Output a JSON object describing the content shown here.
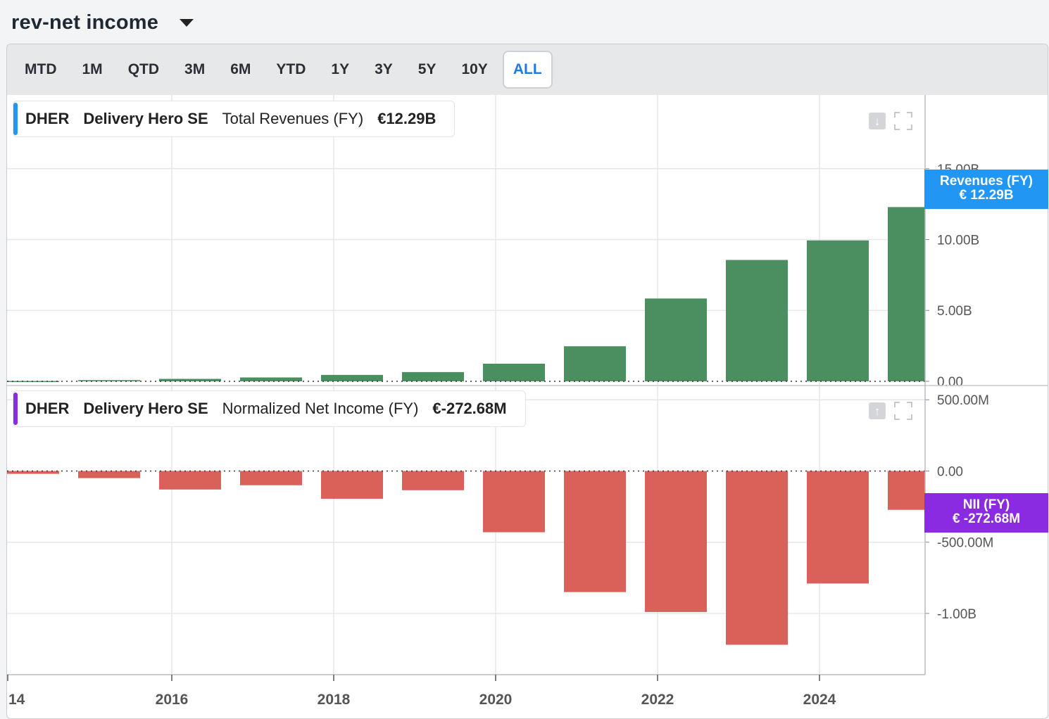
{
  "title": "rev-net income",
  "range_buttons": [
    "MTD",
    "1M",
    "QTD",
    "3M",
    "6M",
    "YTD",
    "1Y",
    "3Y",
    "5Y",
    "10Y",
    "ALL"
  ],
  "active_range": "ALL",
  "colors": {
    "revenue_bar": "#4b8e5f",
    "income_bar": "#d9615a",
    "revenue_accent": "#2196f3",
    "income_accent": "#8a2be2",
    "active_range": "#1e7be6"
  },
  "revenue_pane": {
    "ticker": "DHER",
    "company": "Delivery Hero SE",
    "metric": "Total Revenues (FY)",
    "value": "€12.29B",
    "tag_line1": "Revenues (FY)",
    "tag_line2": "€ 12.29B"
  },
  "income_pane": {
    "ticker": "DHER",
    "company": "Delivery Hero SE",
    "metric": "Normalized Net Income (FY)",
    "value": "€-272.68M",
    "tag_line1": "NII (FY)",
    "tag_line2": "€ -272.68M"
  },
  "chart_data": [
    {
      "type": "bar",
      "title": "Total Revenues (FY)",
      "unit": "EUR billions",
      "categories": [
        "2014",
        "2015",
        "2016",
        "2017",
        "2018",
        "2019",
        "2020",
        "2021",
        "2022",
        "2023",
        "2024",
        "2025"
      ],
      "values": [
        0.02,
        0.08,
        0.17,
        0.27,
        0.45,
        0.65,
        1.24,
        2.47,
        5.84,
        8.56,
        9.94,
        12.29
      ],
      "y_ticks": [
        "0.00",
        "5.00B",
        "10.00B",
        "15.00B"
      ],
      "y_tick_values": [
        0,
        5,
        10,
        15
      ],
      "ylim": [
        -0.3,
        20.2
      ],
      "x_tick_labels": [
        "14",
        "2016",
        "2018",
        "2020",
        "2022",
        "2024"
      ],
      "grid": true
    },
    {
      "type": "bar",
      "title": "Normalized Net Income (FY)",
      "unit": "EUR millions",
      "categories": [
        "2014",
        "2015",
        "2016",
        "2017",
        "2018",
        "2019",
        "2020",
        "2021",
        "2022",
        "2023",
        "2024",
        "2025"
      ],
      "values": [
        -20,
        -50,
        -130,
        -100,
        -195,
        -135,
        -430,
        -850,
        -990,
        -1220,
        -790,
        -272.68
      ],
      "y_ticks": [
        "500.00M",
        "0.00",
        "-500.00M",
        "-1.00B"
      ],
      "y_tick_values": [
        500,
        0,
        -500,
        -1000
      ],
      "ylim": [
        -1430,
        600
      ],
      "grid": true
    }
  ]
}
